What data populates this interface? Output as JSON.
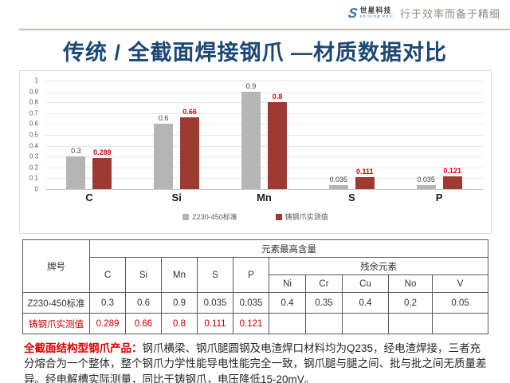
{
  "header": {
    "logo_text": "世星科技",
    "logo_subtext": "shixing keji",
    "logo_icon_glyph": "S",
    "slogan": "行于效率而备于精细"
  },
  "title": "传统 / 全截面焊接钢爪 —材质数据对比",
  "chart_data": {
    "type": "bar",
    "title": "",
    "categories": [
      "C",
      "Si",
      "Mn",
      "S",
      "P"
    ],
    "series": [
      {
        "name": "Z230-450标准",
        "color": "#b5b5b5",
        "label_color": "#404040",
        "label_bold": false,
        "values": [
          0.3,
          0.6,
          0.9,
          0.035,
          0.035
        ],
        "labels": [
          "0.3",
          "0.6",
          "0.9",
          "0.035",
          "0.035"
        ]
      },
      {
        "name": "铸钢爪实测值",
        "color": "#9e3a32",
        "label_color": "#e00000",
        "label_bold": true,
        "values": [
          0.289,
          0.66,
          0.8,
          0.111,
          0.121
        ],
        "labels": [
          "0.289",
          "0.66",
          "0.8",
          "0.111",
          "0.121"
        ]
      }
    ],
    "ylim": [
      0,
      1
    ],
    "yticks": [
      "1",
      "0.9",
      "0.8",
      "0.7",
      "0.6",
      "0.5",
      "0.4",
      "0.3",
      "0.2",
      "0.1",
      "0"
    ],
    "grid": true,
    "legend_position": "bottom"
  },
  "table": {
    "corner_header": "牌号",
    "group_header": "元素最高含量",
    "element_headers": [
      "C",
      "Si",
      "Mn",
      "S",
      "P"
    ],
    "residual_header": "残余元素",
    "residual_element_headers": [
      "Ni",
      "Cr",
      "Cu",
      "No",
      "V"
    ],
    "rows": [
      {
        "label": "Z230-450标准",
        "values": [
          "0.3",
          "0.6",
          "0.9",
          "0.035",
          "0.035",
          "0.4",
          "0.35",
          "0.4",
          "0.2",
          "0.05"
        ],
        "highlight": false
      },
      {
        "label": "铸钢爪实测值",
        "values": [
          "0.289",
          "0.66",
          "0.8",
          "0.111",
          "0.121",
          "",
          "",
          "",
          "",
          ""
        ],
        "highlight": true
      }
    ]
  },
  "footer": {
    "lead": "全截面结构型钢爪产品：",
    "body": "钢爪横梁、钢爪腿圆钢及电渣焊口材料均为Q235，经电渣焊接，三者充分熔合为一个整体，整个钢爪力学性能导电性能完全一致，钢爪腿与腿之间、批与批之间无质量差异。经电解槽实际测量，同比于铸钢爪，电压降低15-20mV。"
  },
  "colors": {
    "title_navy": "#1d4775",
    "accent_red": "#e00000",
    "table_red": "#c00000",
    "bar_gray": "#b5b5b5",
    "bar_red": "#9e3a32",
    "divider_tan": "#c3bcab"
  }
}
